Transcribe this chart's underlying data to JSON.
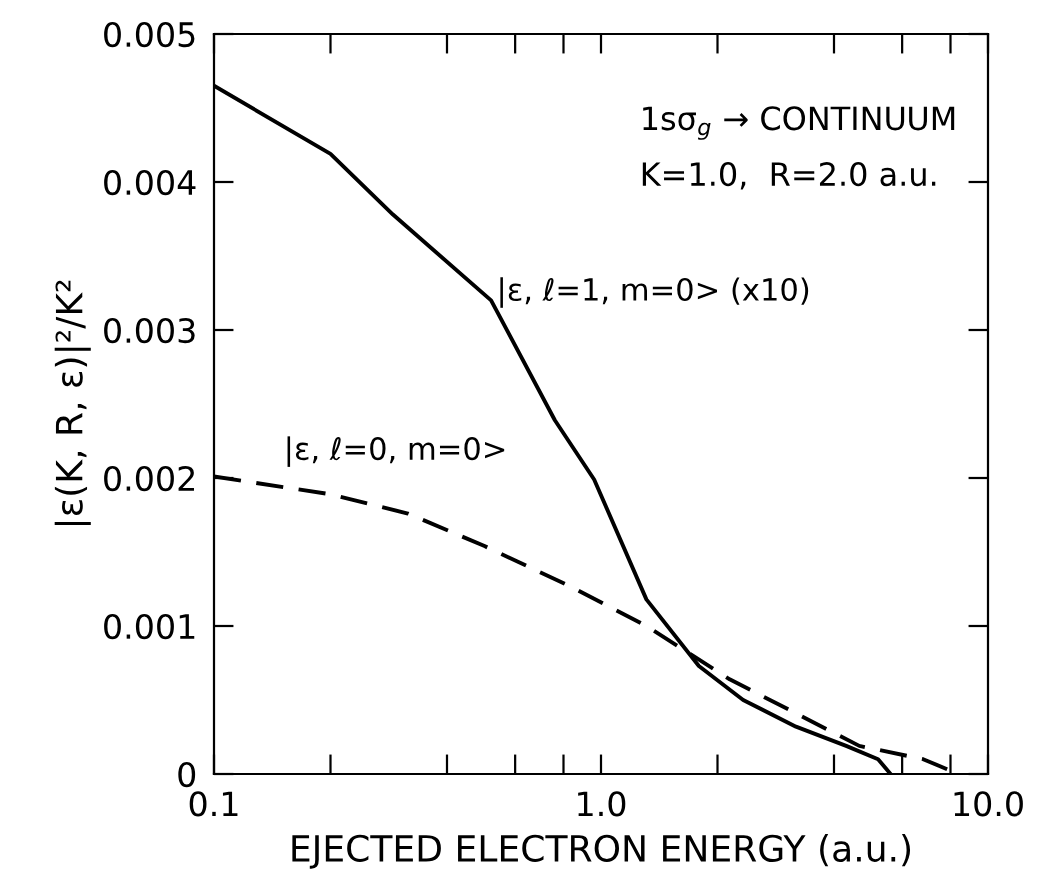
{
  "chart_data": {
    "type": "line",
    "xlabel": "EJECTED ELECTRON ENERGY (a.u.)",
    "ylabel": "|ε(K, R, ε)|²/K²",
    "annotations": [
      "1sσ$_{g}$ → CONTINUUM",
      "K=1.0,  R=2.0 a.u."
    ],
    "log": "x",
    "xlim": [
      0.1,
      10.0
    ],
    "xticks": [
      {
        "value": 0.1,
        "label": "0.1"
      },
      {
        "value": 0.2,
        "label": null
      },
      {
        "value": 0.4,
        "label": null
      },
      {
        "value": 0.6,
        "label": null
      },
      {
        "value": 0.8,
        "label": null
      },
      {
        "value": 1.0,
        "label": "1.0"
      },
      {
        "value": 2,
        "label": null
      },
      {
        "value": 4,
        "label": null
      },
      {
        "value": 6,
        "label": null
      },
      {
        "value": 8,
        "label": null
      },
      {
        "value": 10.0,
        "label": "10.0"
      }
    ],
    "ylim": [
      0,
      0.005
    ],
    "yticks": [
      0,
      0.001,
      0.002,
      0.003,
      0.004,
      0.005
    ],
    "grid": false,
    "legend": false,
    "series": [
      {
        "name": "|ε, ℓ=1, m=0> (x10)",
        "color": "#000000",
        "line_style": "solid",
        "x": [
          0.1,
          0.2,
          0.29,
          0.52,
          0.76,
          0.96,
          1.31,
          1.79,
          2.33,
          3.19,
          4.3,
          5.2,
          5.6
        ],
        "values": [
          0.00465,
          0.00419,
          0.00378,
          0.0032,
          0.00239,
          0.00199,
          0.00118,
          0.00073,
          0.0005,
          0.00032,
          0.00019,
          0.0001,
          0.0
        ]
      },
      {
        "name": "|ε, ℓ=0, m=0>",
        "color": "#000000",
        "line_style": "dashed",
        "x": [
          0.1,
          0.2,
          0.317,
          0.5,
          0.83,
          1.31,
          2.15,
          3.19,
          4.65,
          6.8,
          8.4
        ],
        "values": [
          0.00201,
          0.00189,
          0.00176,
          0.00154,
          0.00127,
          0.001,
          0.00064,
          0.00041,
          0.00019,
          0.0001,
          0.0
        ]
      }
    ]
  }
}
